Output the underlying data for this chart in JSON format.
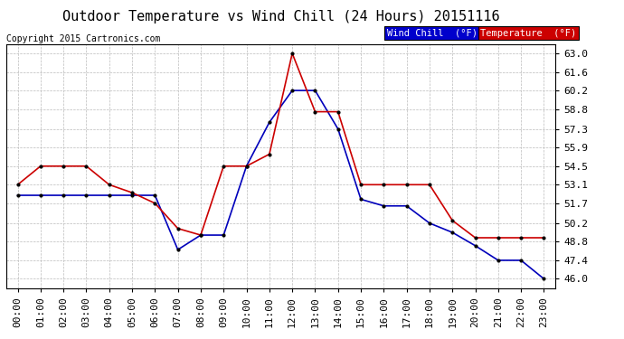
{
  "title": "Outdoor Temperature vs Wind Chill (24 Hours) 20151116",
  "copyright": "Copyright 2015 Cartronics.com",
  "background_color": "#ffffff",
  "grid_color": "#bbbbbb",
  "x_labels": [
    "00:00",
    "01:00",
    "02:00",
    "03:00",
    "04:00",
    "05:00",
    "06:00",
    "07:00",
    "08:00",
    "09:00",
    "10:00",
    "11:00",
    "12:00",
    "13:00",
    "14:00",
    "15:00",
    "16:00",
    "17:00",
    "18:00",
    "19:00",
    "20:00",
    "21:00",
    "22:00",
    "23:00"
  ],
  "ylim": [
    45.3,
    63.7
  ],
  "yticks": [
    46.0,
    47.4,
    48.8,
    50.2,
    51.7,
    53.1,
    54.5,
    55.9,
    57.3,
    58.8,
    60.2,
    61.6,
    63.0
  ],
  "temperature": [
    53.1,
    54.5,
    54.5,
    54.5,
    53.1,
    52.5,
    51.7,
    49.8,
    49.3,
    54.5,
    54.5,
    55.4,
    63.0,
    58.6,
    58.6,
    53.1,
    53.1,
    53.1,
    53.1,
    50.4,
    49.1,
    49.1,
    49.1,
    49.1
  ],
  "wind_chill": [
    52.3,
    52.3,
    52.3,
    52.3,
    52.3,
    52.3,
    52.3,
    48.2,
    49.3,
    49.3,
    54.5,
    57.8,
    60.2,
    60.2,
    57.3,
    52.0,
    51.5,
    51.5,
    50.2,
    49.5,
    48.5,
    47.4,
    47.4,
    46.0
  ],
  "temp_color": "#cc0000",
  "wind_color": "#0000bb",
  "legend_wind_bg": "#0000cc",
  "legend_temp_bg": "#cc0000",
  "legend_text_color": "#ffffff",
  "title_fontsize": 11,
  "tick_fontsize": 8
}
